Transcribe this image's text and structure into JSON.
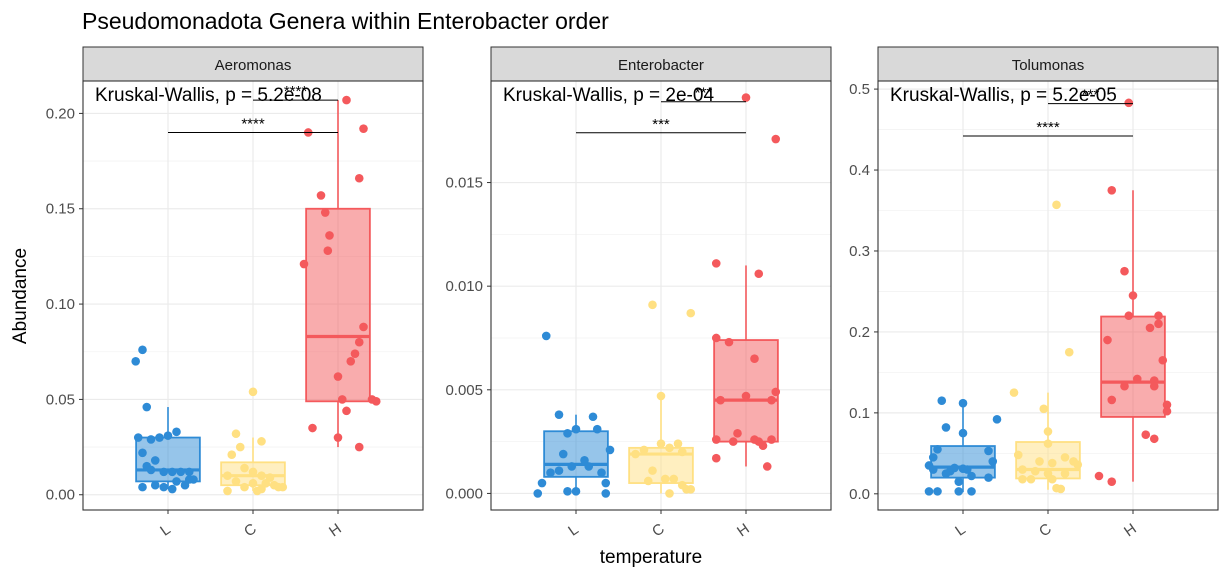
{
  "title": "Pseudomonadota Genera within Enterobacter order",
  "ylabel": "Abundance",
  "xlabel": "temperature",
  "colors": {
    "L": "#2E8BD6",
    "C": "#FFE082",
    "H": "#F4595C",
    "strip_bg": "#D9D9D9",
    "grid": "#EBEBEB",
    "frame": "#333333"
  },
  "chart_data": [
    {
      "type": "box",
      "panel": "Aeromonas",
      "categories": [
        "L",
        "C",
        "H"
      ],
      "ylim": [
        -0.008,
        0.217
      ],
      "yticks": [
        0.0,
        0.05,
        0.1,
        0.15,
        0.2
      ],
      "ytick_labels": [
        "0.00",
        "0.05",
        "0.10",
        "0.15",
        "0.20"
      ],
      "annotation": "Kruskal-Wallis, p = 5.2e-08",
      "brackets": [
        {
          "from": "L",
          "to": "H",
          "y": 0.19,
          "label": "****"
        },
        {
          "from": "C",
          "to": "H",
          "y": 0.207,
          "label": "****"
        }
      ],
      "boxes": [
        {
          "category": "L",
          "q1": 0.007,
          "median": 0.013,
          "q3": 0.03,
          "whisker_low": 0.003,
          "whisker_high": 0.046
        },
        {
          "category": "C",
          "q1": 0.005,
          "median": 0.01,
          "q3": 0.017,
          "whisker_low": 0.002,
          "whisker_high": 0.03
        },
        {
          "category": "H",
          "q1": 0.049,
          "median": 0.083,
          "q3": 0.15,
          "whisker_low": 0.025,
          "whisker_high": 0.207
        }
      ],
      "points": {
        "L": [
          [
            -0.35,
            0.03
          ],
          [
            -0.3,
            0.076
          ],
          [
            -0.38,
            0.07
          ],
          [
            -0.25,
            0.046
          ],
          [
            -0.2,
            0.029
          ],
          [
            -0.1,
            0.03
          ],
          [
            0.0,
            0.031
          ],
          [
            0.1,
            0.033
          ],
          [
            -0.3,
            0.022
          ],
          [
            -0.15,
            0.018
          ],
          [
            -0.25,
            0.015
          ],
          [
            -0.2,
            0.013
          ],
          [
            -0.05,
            0.012
          ],
          [
            0.05,
            0.012
          ],
          [
            0.15,
            0.012
          ],
          [
            0.25,
            0.012
          ],
          [
            0.3,
            0.008
          ],
          [
            -0.3,
            0.004
          ],
          [
            -0.15,
            0.005
          ],
          [
            -0.05,
            0.004
          ],
          [
            0.05,
            0.003
          ],
          [
            0.2,
            0.005
          ],
          [
            0.25,
            0.008
          ],
          [
            0.1,
            0.007
          ]
        ],
        "C": [
          [
            0.0,
            0.054
          ],
          [
            -0.2,
            0.032
          ],
          [
            0.1,
            0.028
          ],
          [
            -0.25,
            0.021
          ],
          [
            -0.15,
            0.025
          ],
          [
            -0.1,
            0.014
          ],
          [
            0.0,
            0.012
          ],
          [
            -0.3,
            0.01
          ],
          [
            0.1,
            0.01
          ],
          [
            0.2,
            0.009
          ],
          [
            -0.2,
            0.007
          ],
          [
            0.0,
            0.006
          ],
          [
            0.15,
            0.006
          ],
          [
            0.25,
            0.005
          ],
          [
            0.35,
            0.004
          ],
          [
            -0.3,
            0.002
          ],
          [
            -0.1,
            0.004
          ],
          [
            0.05,
            0.002
          ],
          [
            0.3,
            0.004
          ],
          [
            0.1,
            0.003
          ]
        ],
        "H": [
          [
            0.1,
            0.207
          ],
          [
            0.3,
            0.192
          ],
          [
            -0.35,
            0.19
          ],
          [
            0.25,
            0.166
          ],
          [
            -0.2,
            0.157
          ],
          [
            -0.15,
            0.148
          ],
          [
            -0.1,
            0.136
          ],
          [
            -0.12,
            0.128
          ],
          [
            -0.4,
            0.121
          ],
          [
            0.3,
            0.088
          ],
          [
            0.25,
            0.08
          ],
          [
            0.2,
            0.074
          ],
          [
            0.15,
            0.07
          ],
          [
            0.0,
            0.062
          ],
          [
            0.05,
            0.05
          ],
          [
            0.4,
            0.05
          ],
          [
            0.45,
            0.049
          ],
          [
            0.1,
            0.044
          ],
          [
            -0.3,
            0.035
          ],
          [
            0.0,
            0.03
          ],
          [
            0.25,
            0.025
          ]
        ]
      }
    },
    {
      "type": "box",
      "panel": "Enterobacter",
      "categories": [
        "L",
        "C",
        "H"
      ],
      "ylim": [
        -0.0008,
        0.0199
      ],
      "yticks": [
        0.0,
        0.005,
        0.01,
        0.015
      ],
      "ytick_labels": [
        "0.000",
        "0.005",
        "0.010",
        "0.015"
      ],
      "annotation": "Kruskal-Wallis, p = 2e-04",
      "brackets": [
        {
          "from": "L",
          "to": "H",
          "y": 0.0174,
          "label": "***"
        },
        {
          "from": "C",
          "to": "H",
          "y": 0.0189,
          "label": "***"
        }
      ],
      "boxes": [
        {
          "category": "L",
          "q1": 0.0008,
          "median": 0.0014,
          "q3": 0.003,
          "whisker_low": 0.0,
          "whisker_high": 0.0038
        },
        {
          "category": "C",
          "q1": 0.0005,
          "median": 0.0019,
          "q3": 0.0022,
          "whisker_low": 0.0,
          "whisker_high": 0.0047
        },
        {
          "category": "H",
          "q1": 0.0025,
          "median": 0.0045,
          "q3": 0.0074,
          "whisker_low": 0.0013,
          "whisker_high": 0.011
        }
      ],
      "points": {
        "L": [
          [
            -0.35,
            0.0076
          ],
          [
            -0.2,
            0.0038
          ],
          [
            0.2,
            0.0037
          ],
          [
            0.0,
            0.0031
          ],
          [
            0.25,
            0.0031
          ],
          [
            -0.1,
            0.0029
          ],
          [
            0.4,
            0.0021
          ],
          [
            -0.15,
            0.0019
          ],
          [
            0.1,
            0.0016
          ],
          [
            -0.05,
            0.0013
          ],
          [
            0.15,
            0.0013
          ],
          [
            -0.2,
            0.0011
          ],
          [
            -0.3,
            0.001
          ],
          [
            0.3,
            0.001
          ],
          [
            -0.4,
            0.0005
          ],
          [
            0.35,
            0.0005
          ],
          [
            -0.1,
            0.0001
          ],
          [
            0.0,
            0.0001
          ],
          [
            0.35,
            0.0
          ],
          [
            -0.45,
            0.0
          ]
        ],
        "C": [
          [
            -0.1,
            0.0091
          ],
          [
            0.35,
            0.0087
          ],
          [
            0.0,
            0.0047
          ],
          [
            -0.2,
            0.0021
          ],
          [
            0.0,
            0.0024
          ],
          [
            0.2,
            0.0024
          ],
          [
            0.1,
            0.0022
          ],
          [
            0.25,
            0.002
          ],
          [
            -0.3,
            0.0019
          ],
          [
            -0.1,
            0.0011
          ],
          [
            0.15,
            0.0007
          ],
          [
            -0.15,
            0.0006
          ],
          [
            0.05,
            0.0007
          ],
          [
            0.25,
            0.0004
          ],
          [
            0.35,
            0.0002
          ],
          [
            0.1,
            0.0
          ],
          [
            0.3,
            0.0002
          ]
        ],
        "H": [
          [
            0.0,
            0.0191
          ],
          [
            0.35,
            0.0171
          ],
          [
            -0.35,
            0.0111
          ],
          [
            0.15,
            0.0106
          ],
          [
            -0.35,
            0.0075
          ],
          [
            -0.2,
            0.0073
          ],
          [
            0.1,
            0.0065
          ],
          [
            0.35,
            0.0049
          ],
          [
            0.0,
            0.0047
          ],
          [
            -0.3,
            0.0045
          ],
          [
            0.3,
            0.0045
          ],
          [
            -0.1,
            0.0029
          ],
          [
            -0.35,
            0.0026
          ],
          [
            0.1,
            0.0026
          ],
          [
            0.3,
            0.0026
          ],
          [
            0.15,
            0.0025
          ],
          [
            0.2,
            0.0023
          ],
          [
            -0.15,
            0.0025
          ],
          [
            -0.35,
            0.0017
          ],
          [
            0.25,
            0.0013
          ]
        ]
      }
    },
    {
      "type": "box",
      "panel": "Tolumonas",
      "categories": [
        "L",
        "C",
        "H"
      ],
      "ylim": [
        -0.02,
        0.51
      ],
      "yticks": [
        0.0,
        0.1,
        0.2,
        0.3,
        0.4,
        0.5
      ],
      "ytick_labels": [
        "0.0",
        "0.1",
        "0.2",
        "0.3",
        "0.4",
        "0.5"
      ],
      "annotation": "Kruskal-Wallis, p = 5.2e-05",
      "brackets": [
        {
          "from": "L",
          "to": "H",
          "y": 0.442,
          "label": "****"
        },
        {
          "from": "C",
          "to": "H",
          "y": 0.482,
          "label": "***"
        }
      ],
      "boxes": [
        {
          "category": "L",
          "q1": 0.02,
          "median": 0.033,
          "q3": 0.059,
          "whisker_low": 0.002,
          "whisker_high": 0.115
        },
        {
          "category": "C",
          "q1": 0.019,
          "median": 0.03,
          "q3": 0.064,
          "whisker_low": 0.005,
          "whisker_high": 0.125
        },
        {
          "category": "H",
          "q1": 0.095,
          "median": 0.138,
          "q3": 0.219,
          "whisker_low": 0.015,
          "whisker_high": 0.375
        }
      ],
      "points": {
        "L": [
          [
            -0.25,
            0.115
          ],
          [
            0.0,
            0.112
          ],
          [
            0.4,
            0.092
          ],
          [
            -0.2,
            0.082
          ],
          [
            0.0,
            0.075
          ],
          [
            -0.3,
            0.055
          ],
          [
            -0.35,
            0.045
          ],
          [
            0.3,
            0.053
          ],
          [
            -0.4,
            0.035
          ],
          [
            0.35,
            0.04
          ],
          [
            -0.35,
            0.03
          ],
          [
            -0.15,
            0.028
          ],
          [
            -0.1,
            0.032
          ],
          [
            0.0,
            0.031
          ],
          [
            0.05,
            0.03
          ],
          [
            -0.2,
            0.025
          ],
          [
            0.1,
            0.022
          ],
          [
            -0.05,
            0.015
          ],
          [
            0.3,
            0.02
          ],
          [
            -0.3,
            0.003
          ],
          [
            -0.4,
            0.003
          ],
          [
            -0.05,
            0.003
          ],
          [
            0.1,
            0.003
          ]
        ],
        "C": [
          [
            0.1,
            0.357
          ],
          [
            0.25,
            0.175
          ],
          [
            -0.4,
            0.125
          ],
          [
            -0.05,
            0.105
          ],
          [
            0.0,
            0.077
          ],
          [
            0.0,
            0.062
          ],
          [
            -0.35,
            0.048
          ],
          [
            0.2,
            0.045
          ],
          [
            -0.1,
            0.04
          ],
          [
            0.05,
            0.038
          ],
          [
            0.3,
            0.04
          ],
          [
            0.35,
            0.036
          ],
          [
            -0.3,
            0.03
          ],
          [
            -0.15,
            0.028
          ],
          [
            0.0,
            0.025
          ],
          [
            0.2,
            0.025
          ],
          [
            -0.2,
            0.018
          ],
          [
            0.05,
            0.018
          ],
          [
            -0.3,
            0.018
          ],
          [
            0.1,
            0.007
          ],
          [
            0.15,
            0.006
          ]
        ],
        "H": [
          [
            -0.05,
            0.483
          ],
          [
            -0.25,
            0.375
          ],
          [
            -0.1,
            0.275
          ],
          [
            0.0,
            0.245
          ],
          [
            -0.3,
            0.19
          ],
          [
            -0.05,
            0.22
          ],
          [
            0.3,
            0.22
          ],
          [
            0.3,
            0.21
          ],
          [
            0.2,
            0.205
          ],
          [
            0.35,
            0.165
          ],
          [
            0.05,
            0.142
          ],
          [
            0.25,
            0.14
          ],
          [
            -0.1,
            0.133
          ],
          [
            0.25,
            0.133
          ],
          [
            0.4,
            0.11
          ],
          [
            0.4,
            0.102
          ],
          [
            -0.25,
            0.116
          ],
          [
            0.15,
            0.073
          ],
          [
            0.25,
            0.068
          ],
          [
            -0.4,
            0.022
          ],
          [
            -0.25,
            0.015
          ]
        ]
      }
    }
  ]
}
